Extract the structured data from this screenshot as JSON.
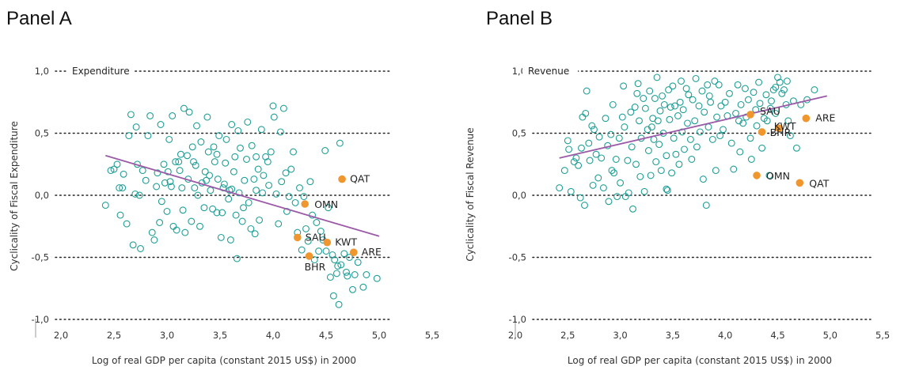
{
  "chart_data": [
    {
      "type": "scatter",
      "panel_title": "Panel A",
      "series_label": "Expenditure",
      "xlabel": "Log of real GDP per capita (constant 2015 US$) in 2000",
      "ylabel": "Cyclicality of Fiscal Expenditure",
      "xlim": [
        2.0,
        5.5
      ],
      "ylim": [
        -1.0,
        1.0
      ],
      "x_ticks": [
        "2,0",
        "2,5",
        "3,0",
        "3,5",
        "4,0",
        "4,5",
        "5,0",
        "5,5"
      ],
      "y_ticks": [
        "1,0",
        "0,5",
        "0,0",
        "-0,5",
        "-1,0"
      ],
      "fit_line": {
        "x": [
          2.42,
          5.0
        ],
        "y": [
          0.32,
          -0.33
        ],
        "color": "#9b5aa8"
      },
      "marker_color": "#1f9e96",
      "highlight_color": "#f0962e",
      "highlighted": [
        {
          "label": "QAT",
          "x": 4.65,
          "y": 0.13
        },
        {
          "label": "OMN",
          "x": 4.3,
          "y": -0.07
        },
        {
          "label": "SAU",
          "x": 4.23,
          "y": -0.34
        },
        {
          "label": "KWT",
          "x": 4.51,
          "y": -0.38
        },
        {
          "label": "BHR",
          "x": 4.34,
          "y": -0.49
        },
        {
          "label": "ARE",
          "x": 4.76,
          "y": -0.46
        }
      ],
      "points": [
        [
          2.42,
          -0.08
        ],
        [
          2.47,
          0.2
        ],
        [
          2.5,
          0.21
        ],
        [
          2.53,
          0.25
        ],
        [
          2.55,
          0.06
        ],
        [
          2.56,
          -0.16
        ],
        [
          2.58,
          0.06
        ],
        [
          2.59,
          0.17
        ],
        [
          2.62,
          -0.23
        ],
        [
          2.64,
          0.48
        ],
        [
          2.66,
          0.65
        ],
        [
          2.68,
          -0.4
        ],
        [
          2.7,
          0.01
        ],
        [
          2.71,
          0.55
        ],
        [
          2.72,
          0.25
        ],
        [
          2.74,
          0.0
        ],
        [
          2.75,
          -0.43
        ],
        [
          2.77,
          0.2
        ],
        [
          2.8,
          0.12
        ],
        [
          2.82,
          0.48
        ],
        [
          2.84,
          0.64
        ],
        [
          2.86,
          -0.3
        ],
        [
          2.88,
          -0.36
        ],
        [
          2.9,
          0.07
        ],
        [
          2.91,
          0.18
        ],
        [
          2.94,
          0.57
        ],
        [
          2.95,
          -0.05
        ],
        [
          2.97,
          0.25
        ],
        [
          2.98,
          0.1
        ],
        [
          3.0,
          -0.13
        ],
        [
          3.01,
          0.19
        ],
        [
          3.02,
          0.45
        ],
        [
          3.04,
          0.07
        ],
        [
          3.05,
          0.64
        ],
        [
          3.06,
          -0.25
        ],
        [
          3.08,
          0.27
        ],
        [
          3.09,
          -0.28
        ],
        [
          3.11,
          0.27
        ],
        [
          3.12,
          0.2
        ],
        [
          3.14,
          0.06
        ],
        [
          3.15,
          -0.12
        ],
        [
          3.16,
          0.7
        ],
        [
          3.17,
          -0.3
        ],
        [
          3.19,
          0.32
        ],
        [
          3.2,
          0.13
        ],
        [
          3.21,
          0.67
        ],
        [
          3.23,
          -0.21
        ],
        [
          3.24,
          0.39
        ],
        [
          3.26,
          0.06
        ],
        [
          3.27,
          0.24
        ],
        [
          3.28,
          0.56
        ],
        [
          3.29,
          0.0
        ],
        [
          3.31,
          -0.25
        ],
        [
          3.32,
          0.43
        ],
        [
          3.33,
          0.1
        ],
        [
          3.35,
          -0.1
        ],
        [
          3.36,
          0.19
        ],
        [
          3.38,
          0.63
        ],
        [
          3.39,
          0.35
        ],
        [
          3.4,
          0.16
        ],
        [
          3.41,
          0.04
        ],
        [
          3.43,
          -0.11
        ],
        [
          3.44,
          0.39
        ],
        [
          3.45,
          0.27
        ],
        [
          3.47,
          -0.14
        ],
        [
          3.48,
          0.13
        ],
        [
          3.49,
          0.48
        ],
        [
          3.51,
          -0.34
        ],
        [
          3.52,
          -0.14
        ],
        [
          3.53,
          0.06
        ],
        [
          3.55,
          0.26
        ],
        [
          3.56,
          0.45
        ],
        [
          3.58,
          -0.03
        ],
        [
          3.59,
          0.04
        ],
        [
          3.6,
          -0.36
        ],
        [
          3.61,
          0.57
        ],
        [
          3.63,
          0.19
        ],
        [
          3.64,
          0.31
        ],
        [
          3.65,
          -0.16
        ],
        [
          3.67,
          0.52
        ],
        [
          3.68,
          0.02
        ],
        [
          3.69,
          0.38
        ],
        [
          3.71,
          -0.21
        ],
        [
          3.72,
          -0.1
        ],
        [
          3.73,
          0.12
        ],
        [
          3.75,
          0.29
        ],
        [
          3.76,
          0.59
        ],
        [
          3.77,
          -0.06
        ],
        [
          3.79,
          -0.27
        ],
        [
          3.8,
          0.4
        ],
        [
          3.82,
          0.13
        ],
        [
          3.83,
          -0.31
        ],
        [
          3.84,
          0.04
        ],
        [
          3.86,
          0.21
        ],
        [
          3.87,
          -0.2
        ],
        [
          3.89,
          0.53
        ],
        [
          3.9,
          0.02
        ],
        [
          3.91,
          0.16
        ],
        [
          3.93,
          0.31
        ],
        [
          3.95,
          0.27
        ],
        [
          3.96,
          0.08
        ],
        [
          3.98,
          0.35
        ],
        [
          4.0,
          0.72
        ],
        [
          4.01,
          0.63
        ],
        [
          4.03,
          0.01
        ],
        [
          4.05,
          -0.23
        ],
        [
          4.07,
          0.51
        ],
        [
          4.08,
          0.11
        ],
        [
          4.1,
          0.7
        ],
        [
          4.12,
          0.18
        ],
        [
          4.13,
          -0.13
        ],
        [
          4.15,
          -0.01
        ],
        [
          4.17,
          0.21
        ],
        [
          4.19,
          0.35
        ],
        [
          4.21,
          -0.06
        ],
        [
          4.23,
          -0.3
        ],
        [
          4.25,
          0.06
        ],
        [
          4.27,
          -0.44
        ],
        [
          4.29,
          -0.01
        ],
        [
          4.31,
          -0.27
        ],
        [
          4.33,
          -0.37
        ],
        [
          4.35,
          0.11
        ],
        [
          4.37,
          -0.16
        ],
        [
          4.39,
          -0.52
        ],
        [
          4.41,
          -0.22
        ],
        [
          4.43,
          -0.45
        ],
        [
          4.45,
          -0.29
        ],
        [
          4.47,
          -0.36
        ],
        [
          4.49,
          0.36
        ],
        [
          4.5,
          -0.45
        ],
        [
          4.52,
          -0.1
        ],
        [
          4.54,
          -0.66
        ],
        [
          4.56,
          -0.48
        ],
        [
          4.57,
          -0.81
        ],
        [
          4.58,
          -0.52
        ],
        [
          4.6,
          -0.63
        ],
        [
          4.61,
          -0.57
        ],
        [
          4.62,
          -0.88
        ],
        [
          4.63,
          0.42
        ],
        [
          4.64,
          -0.56
        ],
        [
          4.67,
          -0.47
        ],
        [
          4.69,
          -0.62
        ],
        [
          4.7,
          -0.65
        ],
        [
          4.72,
          -0.5
        ],
        [
          4.75,
          -0.76
        ],
        [
          4.77,
          -0.64
        ],
        [
          4.8,
          -0.54
        ],
        [
          4.85,
          -0.74
        ],
        [
          4.88,
          -0.64
        ],
        [
          4.98,
          -0.67
        ],
        [
          3.61,
          0.05
        ],
        [
          3.84,
          0.31
        ],
        [
          3.66,
          -0.51
        ],
        [
          2.93,
          -0.22
        ],
        [
          3.03,
          0.11
        ],
        [
          3.37,
          0.12
        ],
        [
          3.54,
          0.09
        ],
        [
          3.25,
          0.27
        ],
        [
          3.13,
          0.33
        ],
        [
          3.47,
          0.33
        ]
      ]
    },
    {
      "type": "scatter",
      "panel_title": "Panel B",
      "series_label": "Revenue",
      "xlabel": "Log of real GDP per capita (constant 2015 US$) in 2000",
      "ylabel": "Cyclicality of Fiscal Revenue",
      "xlim": [
        2.0,
        5.5
      ],
      "ylim": [
        -1.0,
        1.0
      ],
      "x_ticks": [
        "2,0",
        "2,5",
        "3,0",
        "3,5",
        "4,0",
        "4,5",
        "5,0",
        "5,5"
      ],
      "y_ticks": [
        "1,0",
        "0,5",
        "0,0",
        "-0,5",
        "-1,0"
      ],
      "fit_line": {
        "x": [
          2.42,
          4.97
        ],
        "y": [
          0.3,
          0.8
        ],
        "color": "#9b5aa8"
      },
      "marker_color": "#1f9e96",
      "highlight_color": "#f0962e",
      "highlighted": [
        {
          "label": "SAU",
          "x": 4.24,
          "y": 0.65
        },
        {
          "label": "ARE",
          "x": 4.77,
          "y": 0.62
        },
        {
          "label": "KWT",
          "x": 4.51,
          "y": 0.54
        },
        {
          "label": "BHR",
          "x": 4.35,
          "y": 0.51
        },
        {
          "label": "OMN",
          "x": 4.3,
          "y": 0.16
        },
        {
          "label": "QAT",
          "x": 4.71,
          "y": 0.1
        }
      ],
      "points": [
        [
          2.42,
          0.06
        ],
        [
          2.47,
          0.2
        ],
        [
          2.5,
          0.44
        ],
        [
          2.51,
          0.37
        ],
        [
          2.53,
          0.03
        ],
        [
          2.56,
          0.27
        ],
        [
          2.58,
          0.3
        ],
        [
          2.6,
          0.24
        ],
        [
          2.62,
          -0.02
        ],
        [
          2.63,
          0.38
        ],
        [
          2.64,
          0.63
        ],
        [
          2.66,
          -0.08
        ],
        [
          2.67,
          0.66
        ],
        [
          2.68,
          0.84
        ],
        [
          2.7,
          0.42
        ],
        [
          2.71,
          0.28
        ],
        [
          2.73,
          0.56
        ],
        [
          2.74,
          0.08
        ],
        [
          2.75,
          0.53
        ],
        [
          2.77,
          0.33
        ],
        [
          2.79,
          0.14
        ],
        [
          2.8,
          0.47
        ],
        [
          2.82,
          0.3
        ],
        [
          2.84,
          0.06
        ],
        [
          2.86,
          0.62
        ],
        [
          2.88,
          0.4
        ],
        [
          2.89,
          -0.05
        ],
        [
          2.91,
          0.49
        ],
        [
          2.93,
          0.73
        ],
        [
          2.94,
          0.18
        ],
        [
          2.96,
          0.29
        ],
        [
          2.97,
          -0.01
        ],
        [
          2.99,
          0.46
        ],
        [
          3.0,
          0.1
        ],
        [
          3.02,
          0.63
        ],
        [
          3.03,
          0.88
        ],
        [
          3.04,
          0.55
        ],
        [
          3.05,
          -0.01
        ],
        [
          3.07,
          0.28
        ],
        [
          3.08,
          0.02
        ],
        [
          3.1,
          0.67
        ],
        [
          3.11,
          0.39
        ],
        [
          3.12,
          -0.11
        ],
        [
          3.14,
          0.71
        ],
        [
          3.15,
          0.25
        ],
        [
          3.17,
          0.9
        ],
        [
          3.18,
          0.6
        ],
        [
          3.19,
          0.15
        ],
        [
          3.2,
          0.46
        ],
        [
          3.22,
          0.78
        ],
        [
          3.23,
          0.03
        ],
        [
          3.24,
          0.7
        ],
        [
          3.26,
          0.53
        ],
        [
          3.27,
          0.36
        ],
        [
          3.28,
          0.84
        ],
        [
          3.29,
          0.16
        ],
        [
          3.31,
          0.62
        ],
        [
          3.32,
          0.45
        ],
        [
          3.33,
          0.78
        ],
        [
          3.34,
          0.27
        ],
        [
          3.35,
          0.95
        ],
        [
          3.36,
          0.6
        ],
        [
          3.37,
          0.41
        ],
        [
          3.38,
          0.68
        ],
        [
          3.39,
          0.2
        ],
        [
          3.4,
          0.8
        ],
        [
          3.41,
          0.5
        ],
        [
          3.42,
          0.73
        ],
        [
          3.44,
          0.32
        ],
        [
          3.45,
          0.04
        ],
        [
          3.46,
          0.85
        ],
        [
          3.47,
          0.61
        ],
        [
          3.48,
          0.71
        ],
        [
          3.49,
          0.18
        ],
        [
          3.5,
          0.88
        ],
        [
          3.51,
          0.46
        ],
        [
          3.52,
          0.72
        ],
        [
          3.53,
          0.33
        ],
        [
          3.55,
          0.64
        ],
        [
          3.56,
          0.25
        ],
        [
          3.58,
          0.92
        ],
        [
          3.59,
          0.51
        ],
        [
          3.6,
          0.69
        ],
        [
          3.61,
          0.37
        ],
        [
          3.63,
          0.86
        ],
        [
          3.64,
          0.58
        ],
        [
          3.65,
          0.81
        ],
        [
          3.67,
          0.45
        ],
        [
          3.68,
          0.29
        ],
        [
          3.69,
          0.77
        ],
        [
          3.71,
          0.6
        ],
        [
          3.72,
          0.94
        ],
        [
          3.73,
          0.39
        ],
        [
          3.75,
          0.72
        ],
        [
          3.76,
          0.51
        ],
        [
          3.78,
          0.84
        ],
        [
          3.79,
          0.13
        ],
        [
          3.8,
          0.67
        ],
        [
          3.82,
          -0.08
        ],
        [
          3.83,
          0.89
        ],
        [
          3.84,
          0.55
        ],
        [
          3.86,
          0.75
        ],
        [
          3.88,
          0.45
        ],
        [
          3.9,
          0.92
        ],
        [
          3.91,
          0.2
        ],
        [
          3.92,
          0.63
        ],
        [
          3.94,
          0.89
        ],
        [
          3.95,
          0.48
        ],
        [
          3.96,
          0.72
        ],
        [
          3.98,
          0.53
        ],
        [
          4.0,
          0.75
        ],
        [
          4.02,
          0.64
        ],
        [
          4.04,
          0.82
        ],
        [
          4.06,
          0.42
        ],
        [
          4.08,
          0.21
        ],
        [
          4.1,
          0.66
        ],
        [
          4.12,
          0.89
        ],
        [
          4.14,
          0.35
        ],
        [
          4.15,
          0.73
        ],
        [
          4.17,
          0.58
        ],
        [
          4.19,
          0.86
        ],
        [
          4.2,
          0.63
        ],
        [
          4.22,
          0.77
        ],
        [
          4.24,
          0.46
        ],
        [
          4.25,
          0.29
        ],
        [
          4.27,
          0.83
        ],
        [
          4.29,
          0.69
        ],
        [
          4.3,
          0.56
        ],
        [
          4.32,
          0.91
        ],
        [
          4.33,
          0.74
        ],
        [
          4.35,
          0.38
        ],
        [
          4.37,
          0.62
        ],
        [
          4.39,
          0.81
        ],
        [
          4.4,
          0.6
        ],
        [
          4.42,
          0.16
        ],
        [
          4.44,
          0.76
        ],
        [
          4.46,
          0.85
        ],
        [
          4.48,
          0.66
        ],
        [
          4.5,
          0.95
        ],
        [
          4.52,
          0.91
        ],
        [
          4.54,
          0.82
        ],
        [
          4.56,
          0.85
        ],
        [
          4.58,
          0.73
        ],
        [
          4.6,
          0.6
        ],
        [
          4.62,
          0.48
        ],
        [
          4.65,
          0.76
        ],
        [
          4.68,
          0.38
        ],
        [
          4.72,
          0.73
        ],
        [
          4.78,
          0.77
        ],
        [
          4.85,
          0.85
        ],
        [
          3.44,
          0.05
        ],
        [
          3.16,
          0.82
        ],
        [
          2.92,
          0.2
        ],
        [
          3.3,
          0.55
        ],
        [
          3.57,
          0.75
        ],
        [
          3.85,
          0.8
        ],
        [
          4.13,
          0.6
        ],
        [
          4.43,
          0.7
        ],
        [
          4.48,
          0.87
        ],
        [
          4.59,
          0.92
        ]
      ]
    }
  ]
}
